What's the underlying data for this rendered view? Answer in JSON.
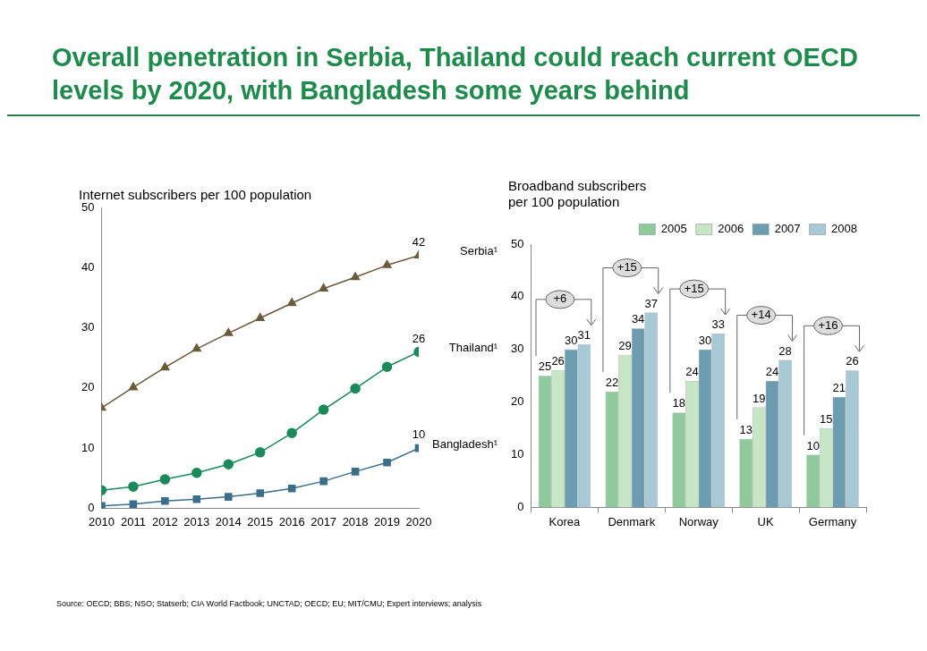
{
  "chart_data": [
    {
      "type": "line",
      "title": "Overall penetration in Serbia, Thailand could reach current OECD levels by 2020, with Bangladesh some years behind",
      "ylabel": "Internet subscribers per 100 population",
      "x": [
        2010,
        2011,
        2012,
        2013,
        2014,
        2015,
        2016,
        2017,
        2018,
        2019,
        2020
      ],
      "xlim": [
        2010,
        2020
      ],
      "xticks": [
        2010,
        2011,
        2012,
        2013,
        2014,
        2015,
        2016,
        2017,
        2018,
        2019,
        2020
      ],
      "ylim": [
        0,
        50
      ],
      "yticks": [
        0,
        10,
        20,
        30,
        40,
        50
      ],
      "legend": false,
      "annotations": [
        "Source: OECD; BBS; NSO; Statserb; CIA World Factbook; UNCTAD; OECD; EU; MIT/CMU; Expert interviews; analysis"
      ],
      "series": [
        {
          "name": "Serbia¹",
          "color": "#6b5a3a",
          "marker": "triangle",
          "values": [
            16.7,
            20.1,
            23.4,
            26.5,
            29.1,
            31.6,
            34.1,
            36.5,
            38.4,
            40.4,
            42
          ],
          "value_labels": [
            null,
            null,
            null,
            null,
            null,
            null,
            null,
            null,
            null,
            null,
            "42"
          ]
        },
        {
          "name": "Thailand¹",
          "color": "#1a8a5a",
          "marker": "circle",
          "values": [
            3.0,
            3.6,
            4.8,
            5.9,
            7.3,
            9.3,
            12.5,
            16.4,
            19.9,
            23.5,
            26
          ],
          "value_labels": [
            null,
            null,
            null,
            null,
            null,
            null,
            null,
            null,
            null,
            null,
            "26"
          ]
        },
        {
          "name": "Bangladesh¹",
          "color": "#3a6e8a",
          "marker": "square",
          "values": [
            0.4,
            0.7,
            1.2,
            1.5,
            1.9,
            2.5,
            3.3,
            4.5,
            6.1,
            7.6,
            10
          ],
          "value_labels": [
            null,
            null,
            null,
            null,
            null,
            null,
            null,
            null,
            null,
            null,
            "10"
          ]
        }
      ]
    },
    {
      "type": "bar",
      "ylabel": "Broadband subscribers\nper 100 population",
      "categories": [
        "Korea",
        "Denmark",
        "Norway",
        "UK",
        "Germany"
      ],
      "ylim": [
        0,
        50
      ],
      "yticks": [
        0,
        10,
        20,
        30,
        40,
        50
      ],
      "legend": "top right",
      "data_labels": true,
      "annotations": [
        "+6",
        "+15",
        "+15",
        "+14",
        "+16"
      ],
      "series": [
        {
          "name": "2005",
          "color": "#8fc99c",
          "values": [
            25,
            22,
            18,
            13,
            10
          ]
        },
        {
          "name": "2006",
          "color": "#c6e6c6",
          "values": [
            26,
            29,
            24,
            19,
            15
          ]
        },
        {
          "name": "2007",
          "color": "#6b9cb0",
          "values": [
            30,
            34,
            30,
            24,
            21
          ]
        },
        {
          "name": "2008",
          "color": "#a9c8d6",
          "values": [
            31,
            37,
            33,
            28,
            26
          ]
        }
      ]
    }
  ]
}
